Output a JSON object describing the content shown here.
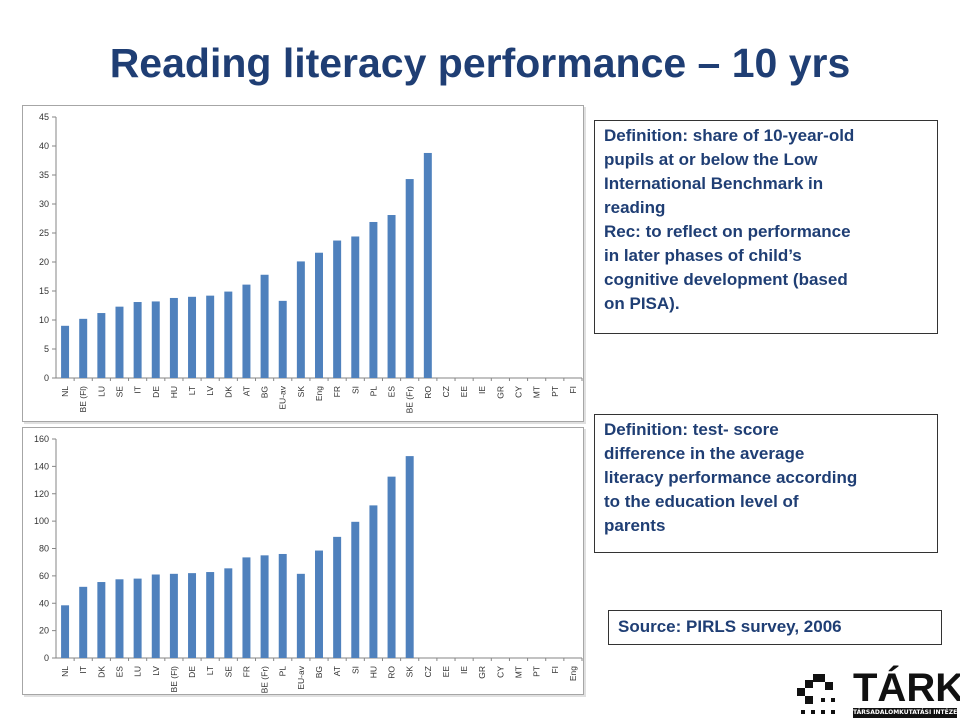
{
  "slide": {
    "title": "Reading literacy performance – 10 yrs"
  },
  "definition_1": {
    "line1": "Definition: share of 10-year-old",
    "line2": "pupils at or below the Low",
    "line3": "International Benchmark in",
    "line4": "reading",
    "line5": "Rec: to reflect on performance",
    "line6": "in later phases of child’s",
    "line7": "cognitive development (based",
    "line8": "on PISA)."
  },
  "definition_2": {
    "line1": "Definition: test- score",
    "line2": "difference in the average",
    "line3": "literacy performance according",
    "line4": "to the education level of",
    "line5": "parents"
  },
  "source": {
    "text": "Source: PIRLS survey, 2006"
  },
  "logo": {
    "name": "TÁRKI",
    "subtitle": "TÁRSADALOMKUTATÁSI INTÉZET RT."
  },
  "colors": {
    "bar": "#4f81bd",
    "title": "#1f3e74",
    "gridline": "#d9d9d9"
  },
  "chart_data": [
    {
      "type": "bar",
      "title": "",
      "xlabel": "",
      "ylabel": "",
      "ylim": [
        0,
        45
      ],
      "yticks": [
        0,
        5,
        10,
        15,
        20,
        25,
        30,
        35,
        40,
        45
      ],
      "grid": false,
      "categories": [
        "NL",
        "BE (Fl)",
        "LU",
        "SE",
        "IT",
        "DE",
        "HU",
        "LT",
        "LV",
        "DK",
        "AT",
        "BG",
        "EU-av",
        "SK",
        "Eng",
        "FR",
        "SI",
        "PL",
        "ES",
        "BE (Fr)",
        "RO",
        "CZ",
        "EE",
        "IE",
        "GR",
        "CY",
        "MT",
        "PT",
        "FI"
      ],
      "values": [
        9,
        10.2,
        11.2,
        12.3,
        13.1,
        13.2,
        13.8,
        14,
        14.2,
        14.9,
        16.1,
        17.8,
        13.3,
        20.1,
        21.6,
        23.7,
        24.4,
        26.9,
        28.1,
        34.3,
        38.8,
        null,
        null,
        null,
        null,
        null,
        null,
        null,
        null
      ]
    },
    {
      "type": "bar",
      "title": "",
      "xlabel": "",
      "ylabel": "",
      "ylim": [
        0,
        160
      ],
      "yticks": [
        0,
        20,
        40,
        60,
        80,
        100,
        120,
        140,
        160
      ],
      "grid": false,
      "categories": [
        "NL",
        "IT",
        "DK",
        "ES",
        "LU",
        "LV",
        "BE (Fl)",
        "DE",
        "LT",
        "SE",
        "FR",
        "BE (Fr)",
        "PL",
        "EU-av",
        "BG",
        "AT",
        "SI",
        "HU",
        "RO",
        "SK",
        "CZ",
        "EE",
        "IE",
        "GR",
        "CY",
        "MT",
        "PT",
        "FI",
        "Eng"
      ],
      "values": [
        38.5,
        52,
        55.5,
        57.5,
        58,
        61,
        61.5,
        62,
        62.8,
        65.5,
        73.5,
        75,
        76,
        61.5,
        78.5,
        88.5,
        99.5,
        111.5,
        132.5,
        147.5,
        null,
        null,
        null,
        null,
        null,
        null,
        null,
        null,
        null
      ]
    }
  ]
}
